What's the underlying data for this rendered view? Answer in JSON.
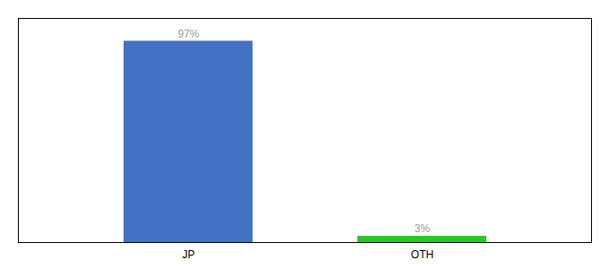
{
  "chart_data": {
    "type": "bar",
    "categories": [
      "JP",
      "OTH"
    ],
    "values": [
      97,
      3
    ],
    "value_labels": [
      "97%",
      "3%"
    ],
    "colors": [
      "#4472c4",
      "#22cc22"
    ],
    "ylim": [
      0,
      108
    ],
    "data_labels": true,
    "tick_labels": "x",
    "grid": false
  }
}
